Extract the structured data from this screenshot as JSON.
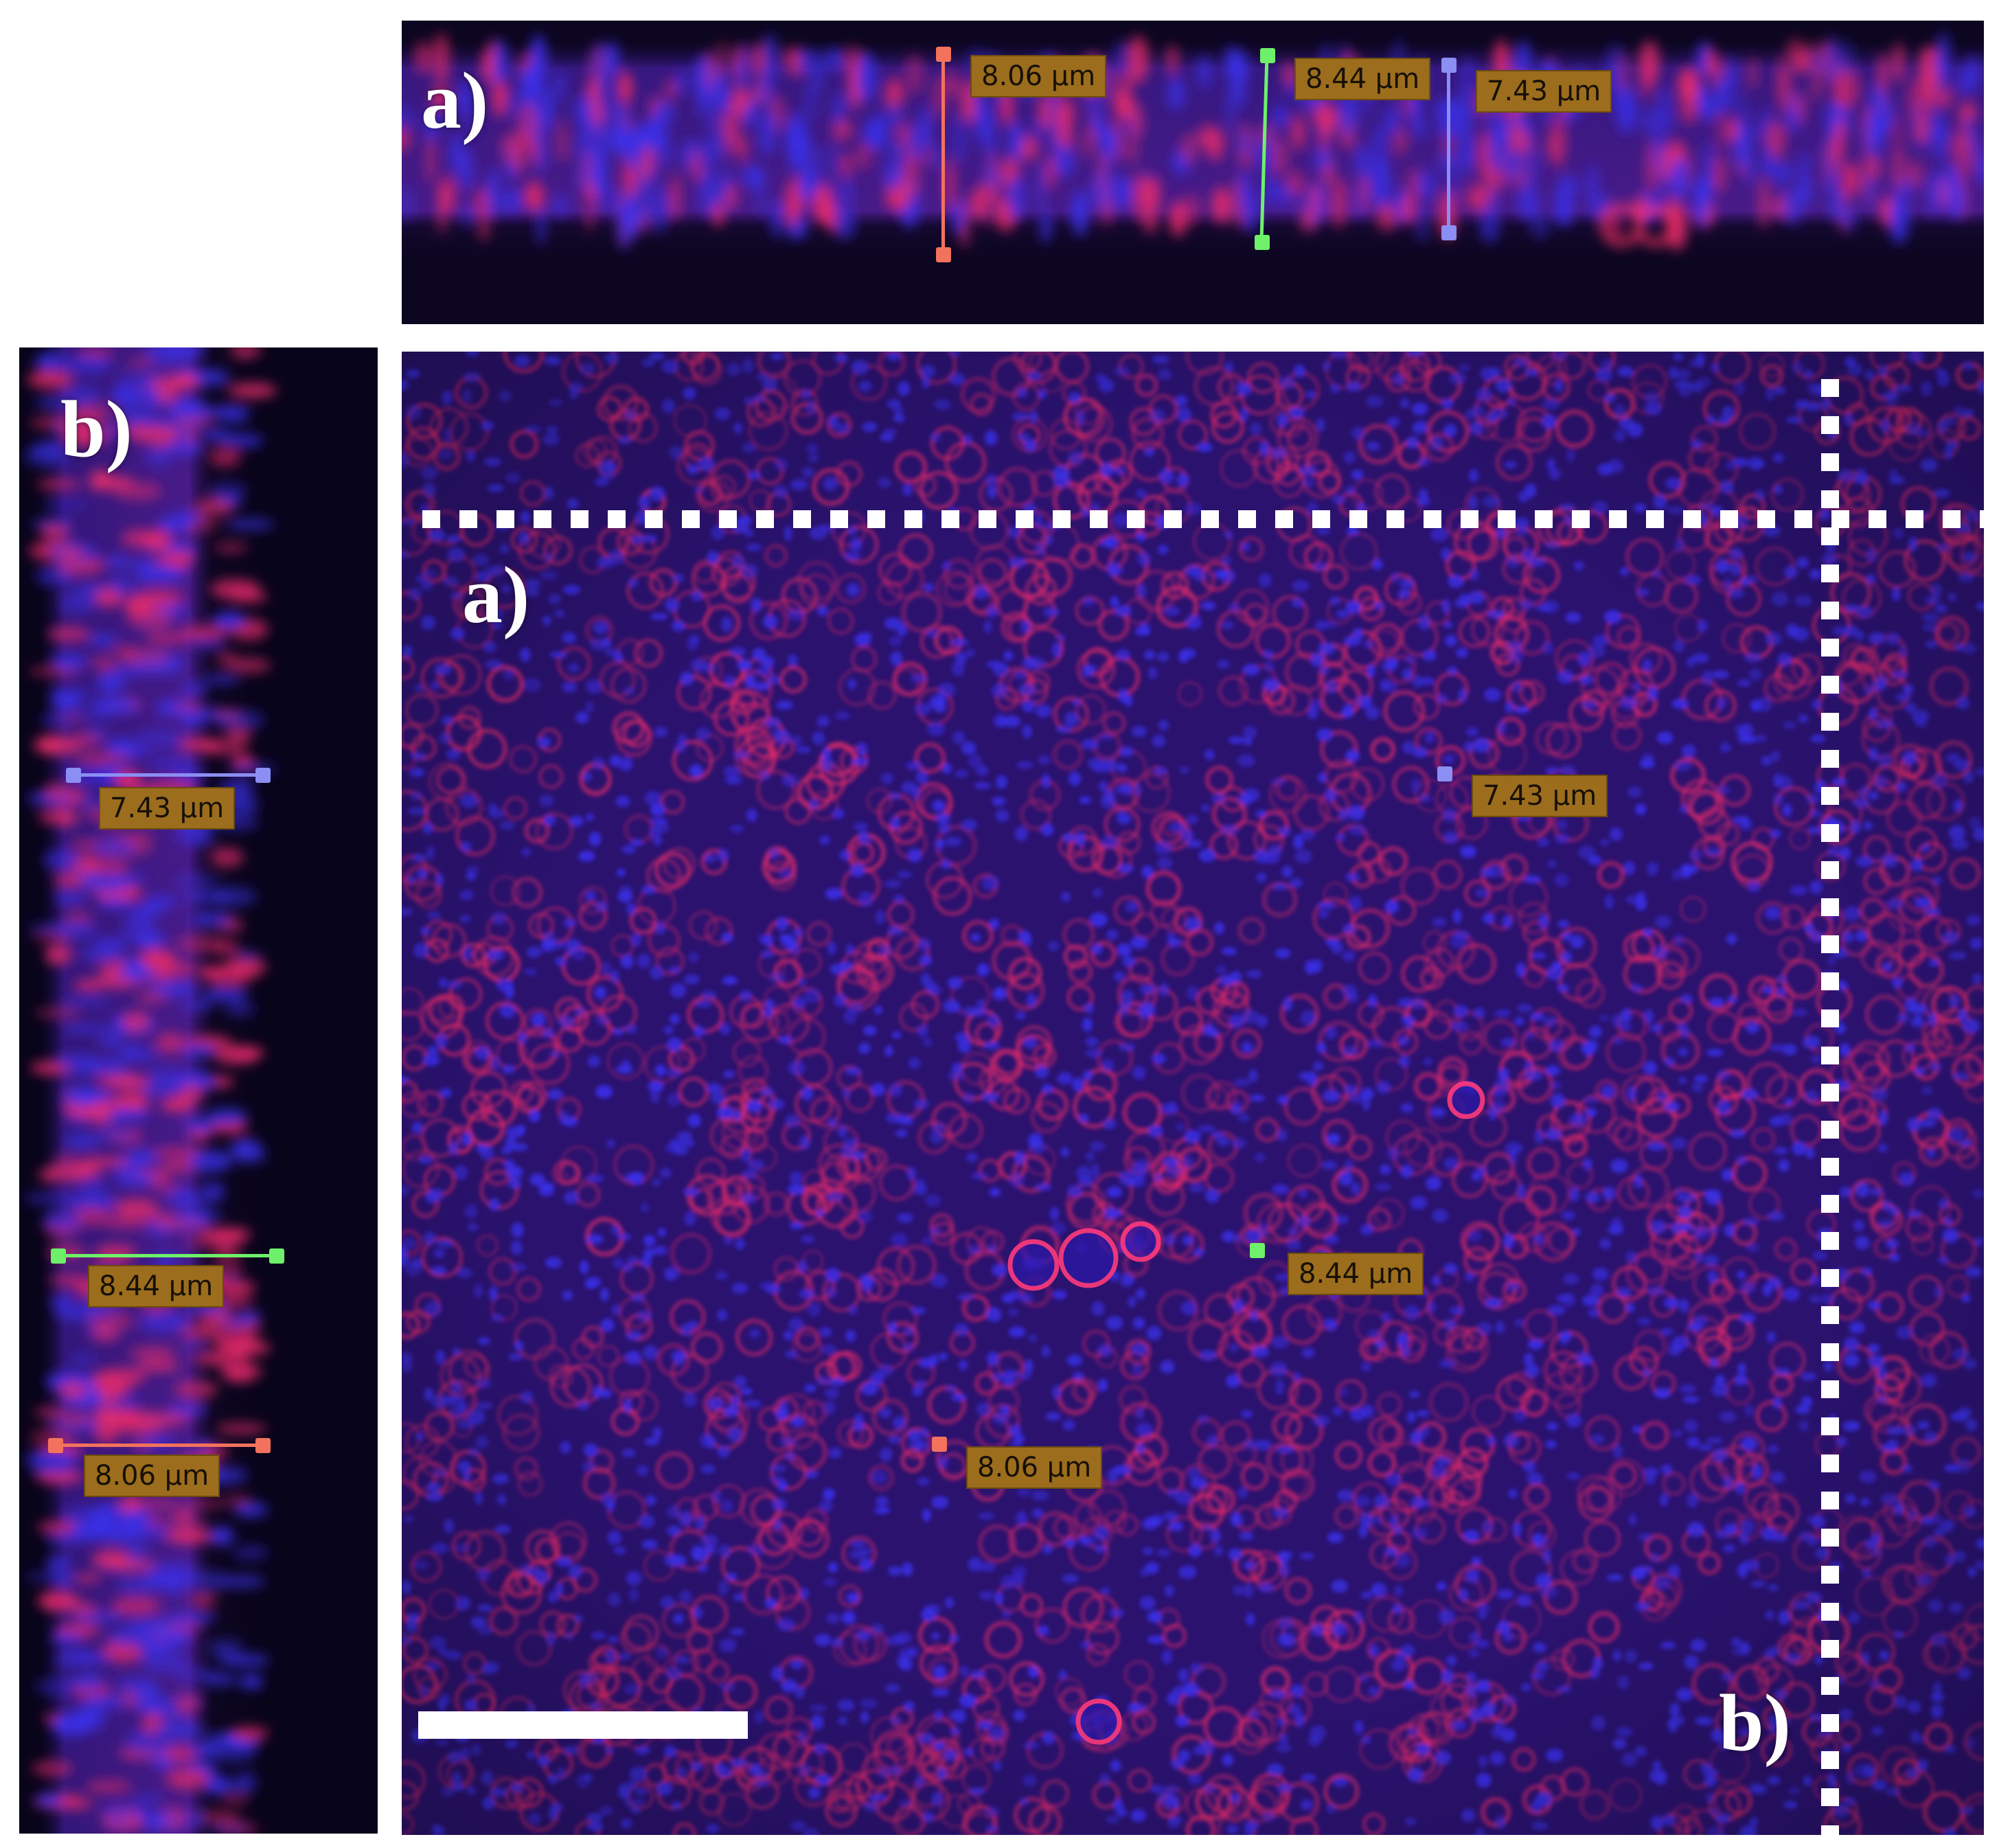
{
  "colors": {
    "measure_red": "#f2725e",
    "measure_green": "#6ef06a",
    "measure_blue": "#8b8ef2",
    "label_bg": "#9b6d1d",
    "membrane_red": "#e62a6a",
    "nucleus_blue": "#3a2fe8",
    "guide_white": "#ffffff"
  },
  "panels": {
    "top": {
      "letter": "a)",
      "measurements": [
        {
          "label": "8.06 µm",
          "color": "red"
        },
        {
          "label": "8.44 µm",
          "color": "green"
        },
        {
          "label": "7.43 µm",
          "color": "blue"
        }
      ]
    },
    "side": {
      "letter": "b)",
      "measurements": [
        {
          "label": "7.43 µm",
          "color": "blue"
        },
        {
          "label": "8.44 µm",
          "color": "green"
        },
        {
          "label": "8.06 µm",
          "color": "red"
        }
      ]
    },
    "main": {
      "letter_a": "a)",
      "letter_b": "b)",
      "measurements": [
        {
          "label": "7.43 µm",
          "color": "blue"
        },
        {
          "label": "8.44 µm",
          "color": "green"
        },
        {
          "label": "8.06 µm",
          "color": "red"
        }
      ]
    }
  }
}
